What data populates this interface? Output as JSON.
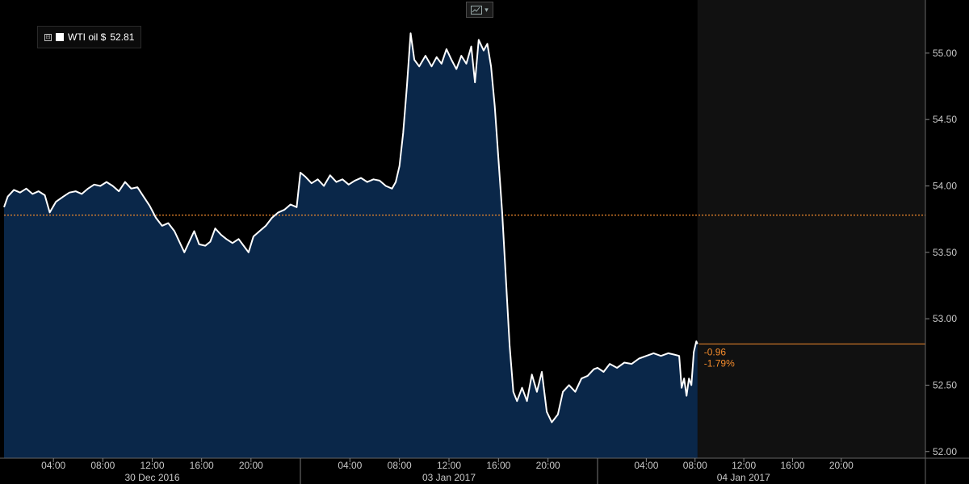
{
  "legend": {
    "series_label": "WTI oil $",
    "last_value": "52.81",
    "toggle_glyph": "⊟"
  },
  "toolbar": {
    "chart_type_icon": "line-chart-icon",
    "dropdown_icon": "chevron-down-icon",
    "dropdown_glyph": "▾"
  },
  "colors": {
    "background": "#000000",
    "plot_today_bg": "#111111",
    "area_fill": "#0a2749",
    "line": "#ffffff",
    "ref_line": "#f28a2b",
    "grid": "#2a2a2a"
  },
  "chart_data": {
    "type": "area",
    "series": [
      {
        "name": "WTI oil $",
        "last": 52.81
      }
    ],
    "ylim": [
      51.95,
      55.4
    ],
    "y_ticks": [
      "52.00",
      "52.50",
      "53.00",
      "53.50",
      "54.00",
      "54.50",
      "55.00"
    ],
    "x_range": [
      "2016-12-30 00:00",
      "2017-01-05 00:00"
    ],
    "x_ticks": [
      {
        "day": "2016-12-30",
        "label": "04:00"
      },
      {
        "day": "2016-12-30",
        "label": "08:00"
      },
      {
        "day": "2016-12-30",
        "label": "12:00"
      },
      {
        "day": "2016-12-30",
        "label": "16:00"
      },
      {
        "day": "2016-12-30",
        "label": "20:00"
      },
      {
        "day": "2017-01-03",
        "label": "04:00"
      },
      {
        "day": "2017-01-03",
        "label": "08:00"
      },
      {
        "day": "2017-01-03",
        "label": "12:00"
      },
      {
        "day": "2017-01-03",
        "label": "16:00"
      },
      {
        "day": "2017-01-03",
        "label": "20:00"
      },
      {
        "day": "2017-01-04",
        "label": "04:00"
      },
      {
        "day": "2017-01-04",
        "label": "08:00"
      },
      {
        "day": "2017-01-04",
        "label": "12:00"
      },
      {
        "day": "2017-01-04",
        "label": "16:00"
      },
      {
        "day": "2017-01-04",
        "label": "20:00"
      }
    ],
    "date_labels": [
      {
        "day": "2016-12-30",
        "label": "30 Dec 2016"
      },
      {
        "day": "2017-01-03",
        "label": "03 Jan 2017"
      },
      {
        "day": "2017-01-04",
        "label": "04 Jan 2017"
      }
    ],
    "reference_line": {
      "value": 53.78,
      "style": "dotted"
    },
    "last_value_line": {
      "value": 52.81
    },
    "change": {
      "abs": "-0.96",
      "pct": "-1.79%"
    },
    "data": [
      {
        "day": "2016-12-30",
        "h": 0.0,
        "y": 53.84
      },
      {
        "day": "2016-12-30",
        "h": 0.3,
        "y": 53.92
      },
      {
        "day": "2016-12-30",
        "h": 0.8,
        "y": 53.97
      },
      {
        "day": "2016-12-30",
        "h": 1.3,
        "y": 53.95
      },
      {
        "day": "2016-12-30",
        "h": 1.8,
        "y": 53.98
      },
      {
        "day": "2016-12-30",
        "h": 2.3,
        "y": 53.94
      },
      {
        "day": "2016-12-30",
        "h": 2.8,
        "y": 53.96
      },
      {
        "day": "2016-12-30",
        "h": 3.3,
        "y": 53.93
      },
      {
        "day": "2016-12-30",
        "h": 3.7,
        "y": 53.8
      },
      {
        "day": "2016-12-30",
        "h": 4.2,
        "y": 53.88
      },
      {
        "day": "2016-12-30",
        "h": 4.8,
        "y": 53.92
      },
      {
        "day": "2016-12-30",
        "h": 5.3,
        "y": 53.95
      },
      {
        "day": "2016-12-30",
        "h": 5.8,
        "y": 53.96
      },
      {
        "day": "2016-12-30",
        "h": 6.3,
        "y": 53.94
      },
      {
        "day": "2016-12-30",
        "h": 6.8,
        "y": 53.98
      },
      {
        "day": "2016-12-30",
        "h": 7.3,
        "y": 54.01
      },
      {
        "day": "2016-12-30",
        "h": 7.8,
        "y": 54.0
      },
      {
        "day": "2016-12-30",
        "h": 8.3,
        "y": 54.03
      },
      {
        "day": "2016-12-30",
        "h": 8.8,
        "y": 54.0
      },
      {
        "day": "2016-12-30",
        "h": 9.3,
        "y": 53.96
      },
      {
        "day": "2016-12-30",
        "h": 9.8,
        "y": 54.03
      },
      {
        "day": "2016-12-30",
        "h": 10.3,
        "y": 53.98
      },
      {
        "day": "2016-12-30",
        "h": 10.8,
        "y": 53.99
      },
      {
        "day": "2016-12-30",
        "h": 11.3,
        "y": 53.92
      },
      {
        "day": "2016-12-30",
        "h": 11.8,
        "y": 53.85
      },
      {
        "day": "2016-12-30",
        "h": 12.3,
        "y": 53.76
      },
      {
        "day": "2016-12-30",
        "h": 12.8,
        "y": 53.7
      },
      {
        "day": "2016-12-30",
        "h": 13.3,
        "y": 53.72
      },
      {
        "day": "2016-12-30",
        "h": 13.8,
        "y": 53.66
      },
      {
        "day": "2016-12-30",
        "h": 14.2,
        "y": 53.58
      },
      {
        "day": "2016-12-30",
        "h": 14.6,
        "y": 53.5
      },
      {
        "day": "2016-12-30",
        "h": 15.0,
        "y": 53.58
      },
      {
        "day": "2016-12-30",
        "h": 15.4,
        "y": 53.66
      },
      {
        "day": "2016-12-30",
        "h": 15.8,
        "y": 53.56
      },
      {
        "day": "2016-12-30",
        "h": 16.3,
        "y": 53.55
      },
      {
        "day": "2016-12-30",
        "h": 16.7,
        "y": 53.58
      },
      {
        "day": "2016-12-30",
        "h": 17.1,
        "y": 53.68
      },
      {
        "day": "2016-12-30",
        "h": 17.6,
        "y": 53.63
      },
      {
        "day": "2016-12-30",
        "h": 18.0,
        "y": 53.6
      },
      {
        "day": "2016-12-30",
        "h": 18.5,
        "y": 53.57
      },
      {
        "day": "2016-12-30",
        "h": 19.0,
        "y": 53.6
      },
      {
        "day": "2016-12-30",
        "h": 19.4,
        "y": 53.55
      },
      {
        "day": "2016-12-30",
        "h": 19.8,
        "y": 53.5
      },
      {
        "day": "2016-12-30",
        "h": 20.2,
        "y": 53.62
      },
      {
        "day": "2016-12-30",
        "h": 20.7,
        "y": 53.66
      },
      {
        "day": "2016-12-30",
        "h": 21.2,
        "y": 53.7
      },
      {
        "day": "2016-12-30",
        "h": 21.7,
        "y": 53.76
      },
      {
        "day": "2016-12-30",
        "h": 22.2,
        "y": 53.8
      },
      {
        "day": "2016-12-30",
        "h": 22.7,
        "y": 53.82
      },
      {
        "day": "2016-12-30",
        "h": 23.2,
        "y": 53.86
      },
      {
        "day": "2016-12-30",
        "h": 23.7,
        "y": 53.84
      },
      {
        "day": "2017-01-03",
        "h": 0.0,
        "y": 54.1
      },
      {
        "day": "2017-01-03",
        "h": 0.4,
        "y": 54.07
      },
      {
        "day": "2017-01-03",
        "h": 0.9,
        "y": 54.02
      },
      {
        "day": "2017-01-03",
        "h": 1.4,
        "y": 54.05
      },
      {
        "day": "2017-01-03",
        "h": 1.9,
        "y": 54.0
      },
      {
        "day": "2017-01-03",
        "h": 2.4,
        "y": 54.08
      },
      {
        "day": "2017-01-03",
        "h": 2.9,
        "y": 54.03
      },
      {
        "day": "2017-01-03",
        "h": 3.4,
        "y": 54.05
      },
      {
        "day": "2017-01-03",
        "h": 3.9,
        "y": 54.01
      },
      {
        "day": "2017-01-03",
        "h": 4.4,
        "y": 54.04
      },
      {
        "day": "2017-01-03",
        "h": 4.9,
        "y": 54.06
      },
      {
        "day": "2017-01-03",
        "h": 5.4,
        "y": 54.03
      },
      {
        "day": "2017-01-03",
        "h": 5.9,
        "y": 54.05
      },
      {
        "day": "2017-01-03",
        "h": 6.4,
        "y": 54.04
      },
      {
        "day": "2017-01-03",
        "h": 6.9,
        "y": 54.0
      },
      {
        "day": "2017-01-03",
        "h": 7.4,
        "y": 53.98
      },
      {
        "day": "2017-01-03",
        "h": 7.7,
        "y": 54.03
      },
      {
        "day": "2017-01-03",
        "h": 8.0,
        "y": 54.15
      },
      {
        "day": "2017-01-03",
        "h": 8.3,
        "y": 54.4
      },
      {
        "day": "2017-01-03",
        "h": 8.6,
        "y": 54.75
      },
      {
        "day": "2017-01-03",
        "h": 8.9,
        "y": 55.15
      },
      {
        "day": "2017-01-03",
        "h": 9.2,
        "y": 54.95
      },
      {
        "day": "2017-01-03",
        "h": 9.6,
        "y": 54.9
      },
      {
        "day": "2017-01-03",
        "h": 10.1,
        "y": 54.98
      },
      {
        "day": "2017-01-03",
        "h": 10.6,
        "y": 54.9
      },
      {
        "day": "2017-01-03",
        "h": 11.0,
        "y": 54.97
      },
      {
        "day": "2017-01-03",
        "h": 11.4,
        "y": 54.92
      },
      {
        "day": "2017-01-03",
        "h": 11.8,
        "y": 55.03
      },
      {
        "day": "2017-01-03",
        "h": 12.2,
        "y": 54.95
      },
      {
        "day": "2017-01-03",
        "h": 12.6,
        "y": 54.88
      },
      {
        "day": "2017-01-03",
        "h": 13.0,
        "y": 54.98
      },
      {
        "day": "2017-01-03",
        "h": 13.4,
        "y": 54.92
      },
      {
        "day": "2017-01-03",
        "h": 13.8,
        "y": 55.05
      },
      {
        "day": "2017-01-03",
        "h": 14.1,
        "y": 54.78
      },
      {
        "day": "2017-01-03",
        "h": 14.4,
        "y": 55.1
      },
      {
        "day": "2017-01-03",
        "h": 14.8,
        "y": 55.02
      },
      {
        "day": "2017-01-03",
        "h": 15.1,
        "y": 55.07
      },
      {
        "day": "2017-01-03",
        "h": 15.4,
        "y": 54.9
      },
      {
        "day": "2017-01-03",
        "h": 15.7,
        "y": 54.6
      },
      {
        "day": "2017-01-03",
        "h": 16.0,
        "y": 54.2
      },
      {
        "day": "2017-01-03",
        "h": 16.3,
        "y": 53.8
      },
      {
        "day": "2017-01-03",
        "h": 16.6,
        "y": 53.3
      },
      {
        "day": "2017-01-03",
        "h": 16.9,
        "y": 52.8
      },
      {
        "day": "2017-01-03",
        "h": 17.2,
        "y": 52.45
      },
      {
        "day": "2017-01-03",
        "h": 17.5,
        "y": 52.38
      },
      {
        "day": "2017-01-03",
        "h": 17.9,
        "y": 52.48
      },
      {
        "day": "2017-01-03",
        "h": 18.3,
        "y": 52.38
      },
      {
        "day": "2017-01-03",
        "h": 18.7,
        "y": 52.58
      },
      {
        "day": "2017-01-03",
        "h": 19.1,
        "y": 52.45
      },
      {
        "day": "2017-01-03",
        "h": 19.5,
        "y": 52.6
      },
      {
        "day": "2017-01-03",
        "h": 19.9,
        "y": 52.3
      },
      {
        "day": "2017-01-03",
        "h": 20.3,
        "y": 52.22
      },
      {
        "day": "2017-01-03",
        "h": 20.8,
        "y": 52.28
      },
      {
        "day": "2017-01-03",
        "h": 21.2,
        "y": 52.45
      },
      {
        "day": "2017-01-03",
        "h": 21.7,
        "y": 52.5
      },
      {
        "day": "2017-01-03",
        "h": 22.2,
        "y": 52.45
      },
      {
        "day": "2017-01-03",
        "h": 22.7,
        "y": 52.55
      },
      {
        "day": "2017-01-03",
        "h": 23.2,
        "y": 52.57
      },
      {
        "day": "2017-01-03",
        "h": 23.7,
        "y": 52.62
      },
      {
        "day": "2017-01-04",
        "h": 0.0,
        "y": 52.63
      },
      {
        "day": "2017-01-04",
        "h": 0.5,
        "y": 52.6
      },
      {
        "day": "2017-01-04",
        "h": 1.0,
        "y": 52.66
      },
      {
        "day": "2017-01-04",
        "h": 1.6,
        "y": 52.63
      },
      {
        "day": "2017-01-04",
        "h": 2.2,
        "y": 52.67
      },
      {
        "day": "2017-01-04",
        "h": 2.8,
        "y": 52.66
      },
      {
        "day": "2017-01-04",
        "h": 3.4,
        "y": 52.7
      },
      {
        "day": "2017-01-04",
        "h": 4.0,
        "y": 52.72
      },
      {
        "day": "2017-01-04",
        "h": 4.6,
        "y": 52.74
      },
      {
        "day": "2017-01-04",
        "h": 5.2,
        "y": 52.72
      },
      {
        "day": "2017-01-04",
        "h": 5.8,
        "y": 52.74
      },
      {
        "day": "2017-01-04",
        "h": 6.3,
        "y": 52.73
      },
      {
        "day": "2017-01-04",
        "h": 6.7,
        "y": 52.72
      },
      {
        "day": "2017-01-04",
        "h": 6.9,
        "y": 52.48
      },
      {
        "day": "2017-01-04",
        "h": 7.1,
        "y": 52.55
      },
      {
        "day": "2017-01-04",
        "h": 7.3,
        "y": 52.42
      },
      {
        "day": "2017-01-04",
        "h": 7.5,
        "y": 52.55
      },
      {
        "day": "2017-01-04",
        "h": 7.7,
        "y": 52.5
      },
      {
        "day": "2017-01-04",
        "h": 7.9,
        "y": 52.75
      },
      {
        "day": "2017-01-04",
        "h": 8.1,
        "y": 52.83
      },
      {
        "day": "2017-01-04",
        "h": 8.2,
        "y": 52.81
      }
    ]
  }
}
